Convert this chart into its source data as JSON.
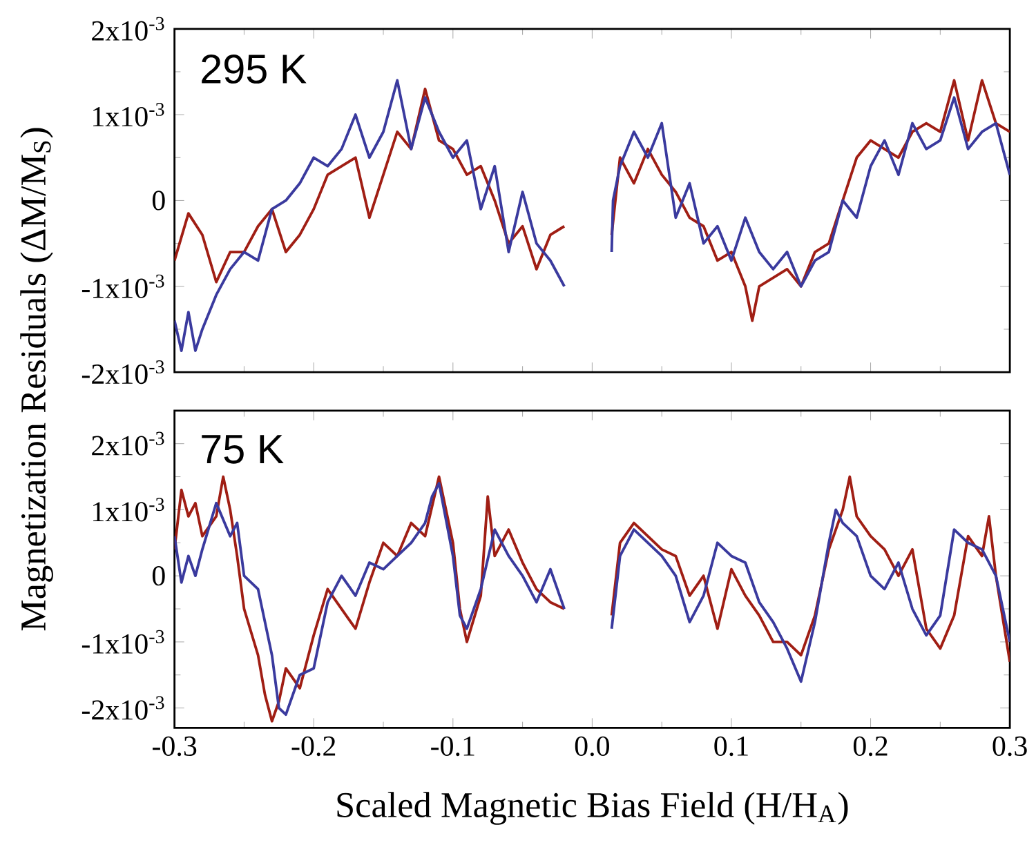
{
  "chart_data": [
    {
      "type": "line",
      "ylabel": "Magnetization Residuals (ΔM/M$_{S}$)",
      "annotations": [
        "295 K"
      ],
      "tick_labels": "y",
      "xlim": [
        -0.3,
        0.3
      ],
      "xticks": [
        {
          "value": -0.3,
          "label": null
        },
        {
          "value": -0.2,
          "label": null
        },
        {
          "value": -0.1,
          "label": null
        },
        {
          "value": 0,
          "label": null
        },
        {
          "value": 0.1,
          "label": null
        },
        {
          "value": 0.2,
          "label": null
        },
        {
          "value": 0.3,
          "label": null
        }
      ],
      "ylim": [
        -0.002,
        0.002
      ],
      "yticks": [
        {
          "value": -0.002,
          "label": "-2x10$^{-3}$"
        },
        {
          "value": -0.001,
          "label": "-1x10$^{-3}$"
        },
        0,
        {
          "value": 0.001,
          "label": "1x10$^{-3}$"
        },
        {
          "value": 0.002,
          "label": "2x10$^{-3}$"
        }
      ],
      "series": [
        {
          "color": "#a01e14",
          "x": [
            -0.3,
            -0.29,
            -0.28,
            -0.27,
            -0.26,
            -0.25,
            -0.24,
            -0.23,
            -0.22,
            -0.21,
            -0.2,
            -0.19,
            -0.18,
            -0.17,
            -0.16,
            -0.15,
            -0.14,
            -0.13,
            -0.12,
            -0.11,
            -0.1,
            -0.09,
            -0.08,
            -0.07,
            -0.06,
            -0.05,
            -0.04,
            -0.03,
            -0.02,
            0,
            0.014,
            0.02,
            0.03,
            0.04,
            0.05,
            0.06,
            0.07,
            0.08,
            0.09,
            0.1,
            0.11,
            0.115,
            0.12,
            0.13,
            0.14,
            0.15,
            0.16,
            0.17,
            0.18,
            0.19,
            0.2,
            0.21,
            0.22,
            0.23,
            0.24,
            0.25,
            0.26,
            0.27,
            0.28,
            0.29,
            0.3
          ],
          "values": [
            -0.0007,
            -0.00015,
            -0.0004,
            -0.00095,
            -0.0006,
            -0.0006,
            -0.0003,
            -0.0001,
            -0.0006,
            -0.0004,
            -0.0001,
            0.0003,
            0.0004,
            0.0005,
            -0.0002,
            0.0003,
            0.0008,
            0.0006,
            0.0013,
            0.0007,
            0.0006,
            0.0003,
            0.0004,
            0.0,
            -0.0005,
            -0.0003,
            -0.0008,
            -0.0004,
            -0.0003,
            null,
            -0.0004,
            0.0005,
            0.0002,
            0.0006,
            0.0003,
            0.0001,
            -0.0002,
            -0.0003,
            -0.0007,
            -0.0006,
            -0.001,
            -0.0014,
            -0.001,
            -0.0009,
            -0.0008,
            -0.001,
            -0.0006,
            -0.0005,
            0.0,
            0.0005,
            0.0007,
            0.0006,
            0.0005,
            0.0008,
            0.0009,
            0.0008,
            0.0014,
            0.0007,
            0.0014,
            0.0009,
            0.0008
          ]
        },
        {
          "color": "#3a3a9e",
          "x": [
            -0.3,
            -0.295,
            -0.29,
            -0.285,
            -0.28,
            -0.27,
            -0.26,
            -0.25,
            -0.24,
            -0.23,
            -0.22,
            -0.21,
            -0.2,
            -0.19,
            -0.18,
            -0.17,
            -0.16,
            -0.15,
            -0.14,
            -0.13,
            -0.12,
            -0.11,
            -0.1,
            -0.09,
            -0.08,
            -0.07,
            -0.06,
            -0.05,
            -0.04,
            -0.03,
            -0.02,
            0,
            0.014,
            0.015,
            0.02,
            0.03,
            0.04,
            0.05,
            0.06,
            0.07,
            0.08,
            0.09,
            0.1,
            0.11,
            0.12,
            0.13,
            0.14,
            0.15,
            0.16,
            0.17,
            0.18,
            0.19,
            0.2,
            0.21,
            0.22,
            0.23,
            0.24,
            0.25,
            0.26,
            0.27,
            0.28,
            0.29,
            0.3
          ],
          "values": [
            -0.0014,
            -0.00175,
            -0.0013,
            -0.00175,
            -0.0015,
            -0.0011,
            -0.0008,
            -0.0006,
            -0.0007,
            -0.0001,
            0.0,
            0.0002,
            0.0005,
            0.0004,
            0.0006,
            0.001,
            0.0005,
            0.0008,
            0.0014,
            0.0006,
            0.0012,
            0.0008,
            0.0005,
            0.0007,
            -0.0001,
            0.0004,
            -0.0006,
            0.0001,
            -0.0005,
            -0.0007,
            -0.001,
            null,
            -0.0006,
            0.0,
            0.0004,
            0.0008,
            0.0005,
            0.0009,
            -0.0002,
            0.0002,
            -0.0005,
            -0.0003,
            -0.0007,
            -0.0002,
            -0.0006,
            -0.0008,
            -0.0006,
            -0.001,
            -0.0007,
            -0.0006,
            0.0,
            -0.0002,
            0.0004,
            0.0007,
            0.0003,
            0.0009,
            0.0006,
            0.0007,
            0.0012,
            0.0006,
            0.0008,
            0.0009,
            0.0003
          ]
        }
      ]
    },
    {
      "type": "line",
      "xlabel": "Scaled Magnetic Bias Field (H/H$_{A}$)",
      "annotations": [
        "75 K"
      ],
      "xlim": [
        -0.3,
        0.3
      ],
      "xticks": [
        -0.3,
        -0.2,
        -0.1,
        {
          "value": 0,
          "label": "0.0"
        },
        0.1,
        0.2,
        0.3
      ],
      "ylim": [
        -0.0023,
        0.0025
      ],
      "yticks": [
        {
          "value": -0.002,
          "label": "-2x10$^{-3}$"
        },
        {
          "value": -0.001,
          "label": "-1x10$^{-3}$"
        },
        0,
        {
          "value": 0.001,
          "label": "1x10$^{-3}$"
        },
        {
          "value": 0.002,
          "label": "2x10$^{-3}$"
        }
      ],
      "series": [
        {
          "color": "#a01e14",
          "x": [
            -0.3,
            -0.295,
            -0.29,
            -0.285,
            -0.28,
            -0.27,
            -0.265,
            -0.26,
            -0.255,
            -0.25,
            -0.24,
            -0.235,
            -0.23,
            -0.225,
            -0.22,
            -0.21,
            -0.2,
            -0.19,
            -0.18,
            -0.17,
            -0.16,
            -0.15,
            -0.14,
            -0.13,
            -0.12,
            -0.11,
            -0.1,
            -0.095,
            -0.09,
            -0.08,
            -0.075,
            -0.07,
            -0.06,
            -0.05,
            -0.04,
            -0.03,
            -0.02,
            0,
            0.014,
            0.02,
            0.03,
            0.04,
            0.05,
            0.06,
            0.07,
            0.08,
            0.09,
            0.1,
            0.11,
            0.12,
            0.13,
            0.14,
            0.15,
            0.16,
            0.17,
            0.18,
            0.185,
            0.19,
            0.2,
            0.21,
            0.22,
            0.23,
            0.24,
            0.25,
            0.26,
            0.27,
            0.28,
            0.285,
            0.29,
            0.3
          ],
          "values": [
            0.0004,
            0.0013,
            0.0009,
            0.0011,
            0.0006,
            0.0009,
            0.0015,
            0.001,
            0.0003,
            -0.0005,
            -0.0012,
            -0.0018,
            -0.0022,
            -0.0019,
            -0.0014,
            -0.0017,
            -0.0009,
            -0.0002,
            -0.0005,
            -0.0008,
            -0.0001,
            0.0005,
            0.0003,
            0.0008,
            0.0006,
            0.0015,
            0.0005,
            -0.0005,
            -0.001,
            -0.0003,
            0.0012,
            0.0003,
            0.0007,
            0.0002,
            -0.0002,
            -0.0004,
            -0.0005,
            null,
            -0.0006,
            0.0005,
            0.0008,
            0.0006,
            0.0004,
            0.0003,
            -0.0003,
            0.0,
            -0.0008,
            0.0001,
            -0.0003,
            -0.0006,
            -0.001,
            -0.001,
            -0.0012,
            -0.0006,
            0.0004,
            0.001,
            0.0015,
            0.0009,
            0.0006,
            0.0004,
            0.0,
            0.0004,
            -0.0008,
            -0.0011,
            -0.0006,
            0.0006,
            0.0003,
            0.0009,
            0.0,
            -0.0013
          ]
        },
        {
          "color": "#3a3a9e",
          "x": [
            -0.3,
            -0.295,
            -0.29,
            -0.285,
            -0.28,
            -0.27,
            -0.26,
            -0.255,
            -0.25,
            -0.24,
            -0.23,
            -0.225,
            -0.22,
            -0.21,
            -0.2,
            -0.19,
            -0.18,
            -0.17,
            -0.16,
            -0.15,
            -0.14,
            -0.13,
            -0.12,
            -0.115,
            -0.11,
            -0.1,
            -0.095,
            -0.09,
            -0.08,
            -0.07,
            -0.06,
            -0.05,
            -0.04,
            -0.03,
            -0.02,
            0,
            0.014,
            0.02,
            0.03,
            0.04,
            0.05,
            0.06,
            0.07,
            0.08,
            0.09,
            0.1,
            0.11,
            0.12,
            0.13,
            0.14,
            0.15,
            0.16,
            0.17,
            0.175,
            0.18,
            0.19,
            0.2,
            0.21,
            0.22,
            0.23,
            0.24,
            0.25,
            0.26,
            0.27,
            0.28,
            0.29,
            0.3
          ],
          "values": [
            0.0006,
            -0.0001,
            0.0003,
            0.0,
            0.0004,
            0.0011,
            0.0006,
            0.0008,
            0.0,
            -0.0002,
            -0.0012,
            -0.002,
            -0.0021,
            -0.0015,
            -0.0014,
            -0.0004,
            0.0,
            -0.0003,
            0.0002,
            0.0001,
            0.0003,
            0.0005,
            0.0008,
            0.0012,
            0.0014,
            0.0003,
            -0.0006,
            -0.0008,
            -0.0002,
            0.0007,
            0.0003,
            0.0,
            -0.0004,
            0.0001,
            -0.0005,
            null,
            -0.0008,
            0.0003,
            0.0007,
            0.0005,
            0.0003,
            0.0,
            -0.0007,
            -0.0003,
            0.0005,
            0.0003,
            0.0002,
            -0.0004,
            -0.0007,
            -0.0011,
            -0.0016,
            -0.0007,
            0.0005,
            0.001,
            0.0008,
            0.0006,
            0.0,
            -0.0002,
            0.0002,
            -0.0005,
            -0.0009,
            -0.0006,
            0.0007,
            0.0005,
            0.0004,
            0.0,
            -0.001
          ]
        }
      ]
    }
  ]
}
